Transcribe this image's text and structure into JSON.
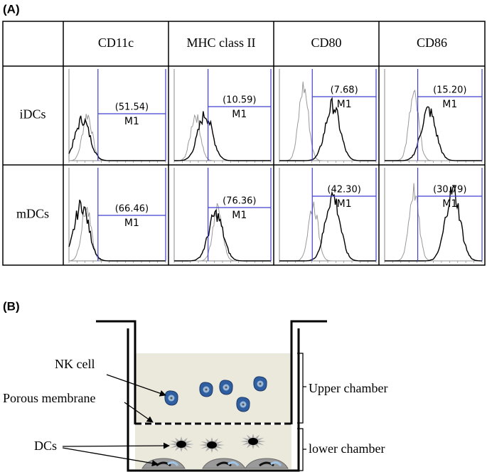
{
  "panel_a": {
    "label": "(A)",
    "columns": [
      "CD11c",
      "MHC class II",
      "CD80",
      "CD86"
    ],
    "rows": [
      {
        "label": "iDCs",
        "cells": [
          {
            "percent": "(51.54)",
            "gate": "M1"
          },
          {
            "percent": "(10.59)",
            "gate": "M1"
          },
          {
            "percent": "(7.68)",
            "gate": "M1"
          },
          {
            "percent": "(15.20)",
            "gate": "M1"
          }
        ]
      },
      {
        "label": "mDCs",
        "cells": [
          {
            "percent": "(66.46)",
            "gate": "M1"
          },
          {
            "percent": "(76.36)",
            "gate": "M1"
          },
          {
            "percent": "(42.30)",
            "gate": "M1"
          },
          {
            "percent": "(30.79)",
            "gate": "M1"
          }
        ]
      }
    ]
  },
  "panel_b": {
    "label": "(B)",
    "labels": {
      "nk_cell": "NK cell",
      "porous_membrane": "Porous membrane",
      "dcs": "DCs",
      "upper_chamber": "Upper chamber",
      "lower_chamber": "lower chamber"
    }
  }
}
